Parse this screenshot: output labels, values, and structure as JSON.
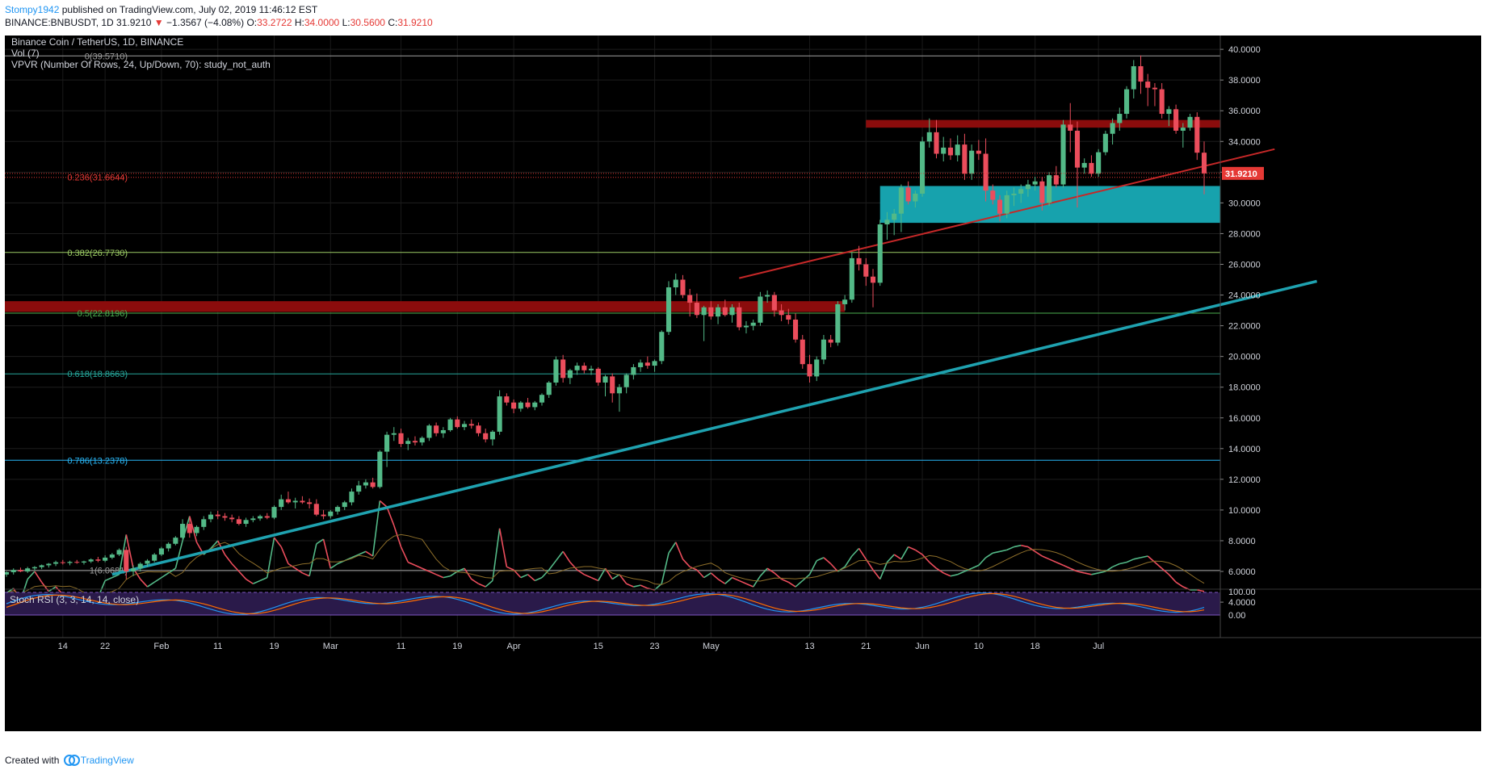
{
  "header": {
    "author": "Stompy1942",
    "published": "published on TradingView.com, July 02, 2019 11:46:12 EST",
    "symbol": "BINANCE:BNBUSDT, 1D",
    "last": "31.9210",
    "arrow": "▼",
    "change": "−1.3567 (−4.08%)",
    "o_label": "O:",
    "o": "33.2722",
    "h_label": "H:",
    "h": "34.0000",
    "l_label": "L:",
    "l": "30.5600",
    "c_label": "C:",
    "c": "31.9210"
  },
  "legend": {
    "title": "Binance Coin / TetherUS, 1D, BINANCE",
    "vol": "Vol (7)",
    "vpvr": "VPVR (Number Of Rows, 24, Up/Down, 70): study_not_auth",
    "stoch": "Stoch RSI (3, 3, 14, 14, close)"
  },
  "footer": {
    "created": "Created with",
    "brand": "TradingView"
  },
  "colors": {
    "up": "#53b987",
    "down": "#eb4d5c",
    "background": "#000000",
    "trendline": "#1fa2b0",
    "resistance": "#c62828",
    "zone_red": "#8b0c0c",
    "zone_teal": "#17a2ad",
    "price_tag": "#e53935"
  },
  "chart_data": {
    "type": "candlestick",
    "symbol": "BNBUSDT",
    "timeframe": "1D",
    "ylim": [
      2.9,
      40.9
    ],
    "y_ticks": [
      "40.0000",
      "38.0000",
      "36.0000",
      "34.0000",
      "32.0000",
      "30.0000",
      "28.0000",
      "26.0000",
      "24.0000",
      "22.0000",
      "20.0000",
      "18.0000",
      "16.0000",
      "14.0000",
      "12.0000",
      "10.0000",
      "8.0000",
      "6.0000",
      "4.0000"
    ],
    "x_ticks": [
      "14",
      "22",
      "Feb",
      "11",
      "19",
      "Mar",
      "11",
      "19",
      "Apr",
      "15",
      "23",
      "May",
      "13",
      "21",
      "Jun",
      "10",
      "18",
      "Jul"
    ],
    "last_price_label": "31.9210",
    "fib_levels": [
      {
        "label": "0(39.5710)",
        "value": 39.571
      },
      {
        "label": "0.236(31.6644)",
        "value": 31.6644
      },
      {
        "label": "0.382(26.7730)",
        "value": 26.773
      },
      {
        "label": "0.5(22.8196)",
        "value": 22.8196
      },
      {
        "label": "0.618(18.8663)",
        "value": 18.8663
      },
      {
        "label": "0.786(13.2378)",
        "value": 13.2378
      },
      {
        "label": "1(6.0681)",
        "value": 6.0681
      }
    ],
    "zones": [
      {
        "name": "resistance",
        "from": 22.9,
        "to": 23.6
      },
      {
        "name": "resistance",
        "from": 34.9,
        "to": 35.4
      },
      {
        "name": "support",
        "from": 28.7,
        "to": 31.1
      }
    ],
    "trendlines": [
      {
        "name": "support",
        "from": {
          "bar": 15,
          "value": 5.8
        },
        "to": {
          "bar": 186,
          "value": 24.9
        }
      },
      {
        "name": "resistance",
        "from": {
          "bar": 104,
          "value": 25.1
        },
        "to": {
          "bar": 180,
          "value": 33.5
        }
      }
    ],
    "ohlc": [
      [
        5.8,
        6.01,
        5.65,
        5.95
      ],
      [
        5.95,
        6.2,
        5.8,
        6.1
      ],
      [
        6.1,
        6.25,
        5.95,
        6.0
      ],
      [
        6.0,
        6.3,
        5.9,
        6.2
      ],
      [
        6.2,
        6.35,
        6.05,
        6.28
      ],
      [
        6.28,
        6.45,
        6.15,
        6.4
      ],
      [
        6.4,
        6.55,
        6.25,
        6.5
      ],
      [
        6.5,
        6.7,
        6.35,
        6.6
      ],
      [
        6.6,
        6.75,
        6.45,
        6.55
      ],
      [
        6.55,
        6.7,
        6.4,
        6.62
      ],
      [
        6.62,
        6.75,
        6.5,
        6.58
      ],
      [
        6.58,
        6.7,
        6.45,
        6.65
      ],
      [
        6.65,
        6.85,
        6.55,
        6.78
      ],
      [
        6.78,
        6.95,
        6.6,
        6.7
      ],
      [
        6.7,
        7.05,
        6.6,
        6.9
      ],
      [
        6.9,
        7.2,
        6.8,
        7.1
      ],
      [
        7.1,
        7.5,
        7.0,
        7.4
      ],
      [
        7.4,
        7.6,
        5.5,
        6.0
      ],
      [
        6.0,
        6.4,
        5.7,
        6.2
      ],
      [
        6.2,
        6.6,
        6.0,
        6.5
      ],
      [
        6.5,
        6.8,
        6.3,
        6.7
      ],
      [
        6.7,
        7.2,
        6.6,
        7.1
      ],
      [
        7.1,
        7.6,
        7.0,
        7.5
      ],
      [
        7.5,
        7.9,
        7.3,
        7.8
      ],
      [
        7.8,
        8.3,
        7.7,
        8.2
      ],
      [
        8.2,
        9.4,
        8.1,
        9.1
      ],
      [
        9.1,
        9.5,
        8.2,
        8.5
      ],
      [
        8.5,
        9.0,
        8.3,
        8.9
      ],
      [
        8.9,
        9.6,
        8.7,
        9.4
      ],
      [
        9.4,
        9.9,
        9.2,
        9.7
      ],
      [
        9.7,
        9.95,
        9.4,
        9.6
      ],
      [
        9.6,
        9.8,
        9.3,
        9.5
      ],
      [
        9.5,
        9.7,
        9.2,
        9.4
      ],
      [
        9.4,
        9.6,
        9.0,
        9.1
      ],
      [
        9.1,
        9.5,
        8.9,
        9.35
      ],
      [
        9.35,
        9.6,
        9.2,
        9.45
      ],
      [
        9.45,
        9.7,
        9.3,
        9.6
      ],
      [
        9.6,
        9.8,
        9.4,
        9.5
      ],
      [
        9.5,
        10.3,
        9.4,
        10.2
      ],
      [
        10.2,
        11.0,
        10.0,
        10.7
      ],
      [
        10.7,
        11.2,
        10.4,
        10.5
      ],
      [
        10.5,
        10.8,
        10.1,
        10.6
      ],
      [
        10.6,
        10.9,
        10.4,
        10.5
      ],
      [
        10.5,
        10.75,
        10.1,
        10.4
      ],
      [
        10.4,
        10.7,
        9.6,
        9.7
      ],
      [
        9.7,
        10.0,
        9.4,
        9.6
      ],
      [
        9.6,
        10.0,
        9.45,
        9.9
      ],
      [
        9.9,
        10.3,
        9.7,
        10.2
      ],
      [
        10.2,
        10.6,
        10.0,
        10.5
      ],
      [
        10.5,
        11.4,
        10.3,
        11.2
      ],
      [
        11.2,
        11.9,
        11.0,
        11.6
      ],
      [
        11.6,
        12.0,
        11.4,
        11.8
      ],
      [
        11.8,
        12.1,
        11.4,
        11.5
      ],
      [
        11.5,
        13.9,
        11.4,
        13.8
      ],
      [
        13.8,
        15.1,
        12.8,
        14.9
      ],
      [
        14.9,
        15.4,
        14.5,
        15.0
      ],
      [
        15.0,
        15.3,
        14.1,
        14.3
      ],
      [
        14.3,
        14.7,
        13.9,
        14.5
      ],
      [
        14.5,
        14.8,
        14.2,
        14.4
      ],
      [
        14.4,
        14.8,
        14.2,
        14.7
      ],
      [
        14.7,
        15.6,
        14.5,
        15.5
      ],
      [
        15.5,
        15.7,
        14.8,
        15.0
      ],
      [
        15.0,
        15.4,
        14.7,
        15.2
      ],
      [
        15.2,
        16.0,
        15.1,
        15.9
      ],
      [
        15.9,
        16.1,
        15.3,
        15.4
      ],
      [
        15.4,
        15.8,
        15.2,
        15.6
      ],
      [
        15.6,
        15.9,
        15.3,
        15.5
      ],
      [
        15.5,
        15.7,
        14.8,
        15.0
      ],
      [
        15.0,
        15.3,
        14.4,
        14.6
      ],
      [
        14.6,
        15.2,
        14.2,
        15.1
      ],
      [
        15.1,
        17.8,
        14.9,
        17.4
      ],
      [
        17.4,
        17.6,
        16.8,
        17.0
      ],
      [
        17.0,
        17.2,
        16.3,
        16.6
      ],
      [
        16.6,
        17.1,
        16.4,
        17.0
      ],
      [
        17.0,
        17.3,
        16.6,
        16.7
      ],
      [
        16.7,
        17.1,
        16.5,
        17.0
      ],
      [
        17.0,
        17.6,
        16.8,
        17.5
      ],
      [
        17.5,
        18.4,
        17.3,
        18.3
      ],
      [
        18.3,
        20.0,
        18.1,
        19.8
      ],
      [
        19.8,
        20.1,
        18.3,
        18.6
      ],
      [
        18.6,
        19.2,
        18.2,
        19.1
      ],
      [
        19.1,
        19.6,
        18.8,
        19.4
      ],
      [
        19.4,
        19.6,
        18.9,
        19.1
      ],
      [
        19.1,
        19.4,
        18.8,
        19.2
      ],
      [
        19.2,
        19.3,
        18.1,
        18.3
      ],
      [
        18.3,
        18.8,
        17.4,
        18.7
      ],
      [
        18.7,
        18.9,
        17.0,
        17.6
      ],
      [
        17.6,
        18.2,
        16.4,
        18.0
      ],
      [
        18.0,
        18.9,
        17.6,
        18.8
      ],
      [
        18.8,
        19.5,
        18.5,
        19.3
      ],
      [
        19.3,
        19.8,
        19.0,
        19.6
      ],
      [
        19.6,
        20.0,
        19.2,
        19.4
      ],
      [
        19.4,
        19.8,
        19.0,
        19.7
      ],
      [
        19.7,
        21.7,
        19.5,
        21.6
      ],
      [
        21.6,
        24.9,
        21.4,
        24.5
      ],
      [
        24.5,
        25.4,
        24.0,
        25.0
      ],
      [
        25.0,
        25.3,
        23.8,
        24.0
      ],
      [
        24.0,
        24.4,
        22.6,
        23.5
      ],
      [
        23.5,
        24.1,
        22.5,
        22.7
      ],
      [
        22.7,
        23.3,
        21.0,
        23.2
      ],
      [
        23.2,
        23.6,
        22.4,
        22.6
      ],
      [
        22.6,
        23.4,
        22.1,
        23.2
      ],
      [
        23.2,
        23.7,
        22.6,
        22.7
      ],
      [
        22.7,
        23.4,
        22.2,
        23.2
      ],
      [
        23.2,
        23.5,
        21.7,
        21.9
      ],
      [
        21.9,
        22.3,
        21.5,
        22.0
      ],
      [
        22.0,
        22.4,
        21.7,
        22.2
      ],
      [
        22.2,
        24.2,
        22.0,
        23.9
      ],
      [
        23.9,
        24.3,
        23.5,
        24.0
      ],
      [
        24.0,
        24.2,
        22.6,
        23.0
      ],
      [
        23.0,
        23.4,
        22.3,
        22.7
      ],
      [
        22.7,
        23.1,
        22.1,
        22.4
      ],
      [
        22.4,
        22.8,
        20.9,
        21.1
      ],
      [
        21.1,
        21.4,
        19.2,
        19.5
      ],
      [
        19.5,
        20.1,
        18.3,
        18.7
      ],
      [
        18.7,
        20.0,
        18.4,
        19.8
      ],
      [
        19.8,
        21.4,
        19.5,
        21.1
      ],
      [
        21.1,
        21.4,
        20.6,
        20.9
      ],
      [
        20.9,
        23.6,
        20.7,
        23.4
      ],
      [
        23.4,
        24.0,
        23.0,
        23.7
      ],
      [
        23.7,
        26.8,
        23.5,
        26.4
      ],
      [
        26.4,
        27.2,
        25.6,
        26.0
      ],
      [
        26.0,
        26.4,
        24.6,
        25.2
      ],
      [
        25.2,
        25.7,
        23.2,
        24.8
      ],
      [
        24.8,
        28.9,
        24.6,
        28.6
      ],
      [
        28.6,
        29.4,
        27.6,
        28.9
      ],
      [
        28.9,
        29.6,
        27.9,
        29.3
      ],
      [
        29.3,
        31.2,
        28.1,
        31.0
      ],
      [
        31.0,
        31.4,
        29.9,
        30.1
      ],
      [
        30.1,
        30.8,
        29.7,
        30.6
      ],
      [
        30.6,
        34.3,
        30.4,
        34.0
      ],
      [
        34.0,
        35.5,
        33.6,
        34.6
      ],
      [
        34.6,
        35.4,
        32.9,
        33.2
      ],
      [
        33.2,
        34.3,
        32.7,
        33.6
      ],
      [
        33.6,
        34.2,
        32.8,
        33.1
      ],
      [
        33.1,
        34.4,
        32.7,
        33.8
      ],
      [
        33.8,
        34.5,
        31.5,
        31.9
      ],
      [
        31.9,
        33.8,
        31.5,
        33.4
      ],
      [
        33.4,
        34.1,
        32.8,
        33.2
      ],
      [
        33.2,
        34.2,
        30.1,
        30.8
      ],
      [
        30.8,
        31.2,
        29.9,
        30.2
      ],
      [
        30.2,
        30.5,
        28.8,
        29.3
      ],
      [
        29.3,
        30.8,
        29.0,
        30.5
      ],
      [
        30.5,
        31.0,
        29.8,
        30.6
      ],
      [
        30.6,
        31.2,
        30.0,
        30.9
      ],
      [
        30.9,
        31.5,
        30.4,
        31.2
      ],
      [
        31.2,
        31.7,
        30.8,
        31.4
      ],
      [
        31.4,
        31.7,
        29.5,
        30.0
      ],
      [
        30.0,
        32.0,
        29.8,
        31.8
      ],
      [
        31.8,
        32.4,
        31.0,
        31.2
      ],
      [
        31.2,
        35.4,
        31.0,
        35.1
      ],
      [
        35.1,
        36.5,
        33.3,
        34.7
      ],
      [
        34.7,
        35.3,
        29.7,
        32.3
      ],
      [
        32.3,
        32.9,
        31.9,
        32.6
      ],
      [
        32.6,
        33.1,
        31.7,
        31.9
      ],
      [
        31.9,
        33.5,
        31.7,
        33.3
      ],
      [
        33.3,
        34.7,
        33.1,
        34.5
      ],
      [
        34.5,
        35.5,
        33.8,
        35.2
      ],
      [
        35.2,
        36.2,
        34.7,
        35.8
      ],
      [
        35.8,
        37.6,
        35.5,
        37.4
      ],
      [
        37.4,
        39.3,
        36.8,
        38.9
      ],
      [
        38.9,
        39.6,
        37.1,
        37.9
      ],
      [
        37.9,
        38.4,
        36.3,
        37.5
      ],
      [
        37.5,
        37.8,
        36.3,
        37.4
      ],
      [
        37.4,
        37.8,
        35.5,
        35.8
      ],
      [
        35.8,
        36.3,
        35.0,
        36.1
      ],
      [
        36.1,
        36.4,
        34.5,
        34.7
      ],
      [
        34.7,
        35.2,
        33.6,
        34.9
      ],
      [
        34.9,
        35.8,
        34.7,
        35.6
      ],
      [
        35.6,
        35.9,
        32.8,
        33.27
      ],
      [
        33.27,
        34.0,
        30.56,
        31.92
      ]
    ],
    "volume": [
      4.6,
      4.9,
      4.1,
      5.5,
      6.0,
      5.3,
      4.7,
      5.0,
      4.5,
      4.3,
      4.4,
      4.2,
      4.6,
      4.3,
      5.4,
      5.6,
      5.8,
      8.4,
      6.2,
      5.5,
      5.0,
      5.3,
      5.6,
      5.9,
      6.2,
      8.0,
      9.6,
      7.9,
      7.1,
      7.5,
      8.0,
      7.1,
      6.5,
      6.0,
      5.5,
      5.2,
      5.4,
      5.6,
      8.2,
      7.6,
      6.5,
      6.2,
      5.9,
      5.7,
      7.8,
      8.1,
      6.2,
      6.5,
      6.7,
      6.9,
      7.1,
      7.3,
      7.0,
      10.6,
      10.2,
      9.0,
      7.6,
      6.6,
      6.4,
      6.2,
      6.0,
      5.8,
      5.6,
      5.7,
      6.0,
      6.2,
      5.5,
      5.2,
      5.0,
      5.4,
      8.8,
      6.3,
      6.1,
      5.6,
      5.8,
      5.4,
      5.6,
      6.1,
      6.7,
      7.3,
      6.6,
      6.1,
      5.8,
      5.6,
      5.4,
      6.2,
      5.5,
      5.8,
      5.2,
      5.0,
      5.1,
      4.9,
      4.8,
      5.2,
      7.2,
      7.9,
      6.8,
      6.3,
      6.1,
      5.6,
      5.9,
      5.5,
      5.2,
      5.6,
      5.4,
      5.2,
      5.0,
      5.7,
      6.2,
      5.9,
      5.5,
      5.3,
      5.0,
      5.4,
      5.8,
      6.7,
      6.9,
      6.5,
      6.0,
      6.3,
      7.0,
      7.5,
      6.8,
      6.1,
      5.5,
      6.6,
      7.1,
      6.8,
      7.6,
      7.4,
      7.1,
      6.6,
      6.2,
      5.9,
      5.7,
      5.8,
      6.0,
      6.2,
      6.4,
      6.9,
      7.2,
      7.3,
      7.4,
      7.6,
      7.7,
      7.6,
      7.3,
      7.0,
      6.8,
      6.6,
      6.4,
      6.2,
      6.0,
      5.9,
      5.8,
      5.9,
      6.0,
      6.3,
      6.5,
      6.6,
      6.8,
      6.9,
      7.0,
      6.6,
      6.2,
      5.8,
      5.3,
      5.0,
      4.8,
      4.8,
      4.7
    ],
    "volume_ylim": [
      3.0,
      9.8
    ],
    "stoch_rsi": {
      "ylim": [
        0,
        100
      ],
      "ticks": [
        "100.00",
        "0.00"
      ],
      "bands": [
        20,
        80
      ]
    }
  }
}
